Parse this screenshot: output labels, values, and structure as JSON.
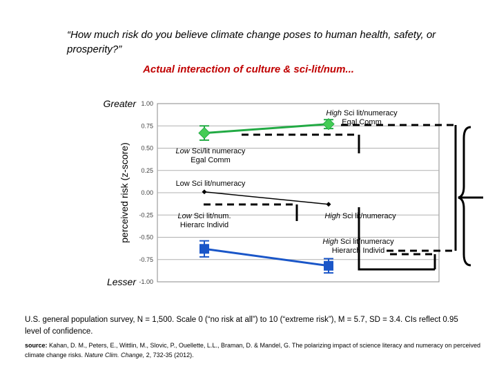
{
  "question": "“How much risk do you believe climate change poses to human health, safety, or prosperity?”",
  "subtitle": "Actual interaction of culture & sci-lit/num...",
  "note": "U.S. general population survey, N = 1,500.  Scale 0 (“no risk at all”) to 10 (“extreme risk”), M = 5.7, SD = 3.4. CIs reflect 0.95 level of confidence.",
  "source_label": "source:",
  "source_text": " Kahan, D. M., Peters, E., Wittlin, M., Slovic, P., Ouellette, L.L., Braman, D. & Mandel, G. The polarizing impact of science literacy and numeracy on perceived climate change risks. ",
  "source_journal": "Nature Clim. Change,",
  "source_tail": " 2, 732-35 (2012).",
  "colors": {
    "egal": "#22aa44",
    "hierarch": "#1a56c8",
    "mean": "#000000",
    "grid": "#b0b0b0"
  },
  "chart_data": {
    "type": "line",
    "ylabel": "perceived risk (z-score)",
    "ylim": [
      -1,
      1
    ],
    "yticks": [
      "1.00",
      "0.75",
      "0.50",
      "0.25",
      "0.00",
      "-0.25",
      "-0.50",
      "-0.75",
      "-1.00"
    ],
    "ytick_values": [
      1,
      0.75,
      0.5,
      0.25,
      0,
      -0.25,
      -0.5,
      -0.75,
      -1
    ],
    "y_end_labels": {
      "top": "Greater",
      "bottom": "Lesser"
    },
    "grid": true,
    "x": [
      "Low Sci lit/numeracy",
      "High Sci lit/numeracy"
    ],
    "series": [
      {
        "key": "egal",
        "marker": "diamond",
        "values": [
          0.67,
          0.77
        ],
        "ci": [
          [
            0.59,
            0.75
          ],
          [
            0.72,
            0.82
          ]
        ]
      },
      {
        "key": "mean",
        "marker": "small-diamond",
        "values": [
          0.01,
          -0.13
        ],
        "ci": [
          [
            0.01,
            0.01
          ],
          [
            -0.13,
            -0.13
          ]
        ]
      },
      {
        "key": "hierarch",
        "marker": "square",
        "values": [
          -0.63,
          -0.82
        ],
        "ci": [
          [
            -0.72,
            -0.54
          ],
          [
            -0.9,
            -0.74
          ]
        ]
      }
    ],
    "annotations": [
      {
        "line1": "High",
        "line2": " Sci lit/numeracy",
        "line3": "Egal Comm"
      },
      {
        "line1": "Low",
        "line2": "  Sci/lit numeracy",
        "line3": "Egal Comm"
      },
      {
        "line1": "",
        "line2": "Low Sci lit/numeracy",
        "line3": ""
      },
      {
        "line1": "Low",
        "line2": " Sci lit/num.",
        "line3": "Hierarc Individ"
      },
      {
        "line1": "High",
        "line2": " Sci lit/numeracy",
        "line3": ""
      },
      {
        "line1": "High",
        "line2": " Sci lit/numeracy",
        "line3": "Hierarch Individ"
      }
    ]
  }
}
